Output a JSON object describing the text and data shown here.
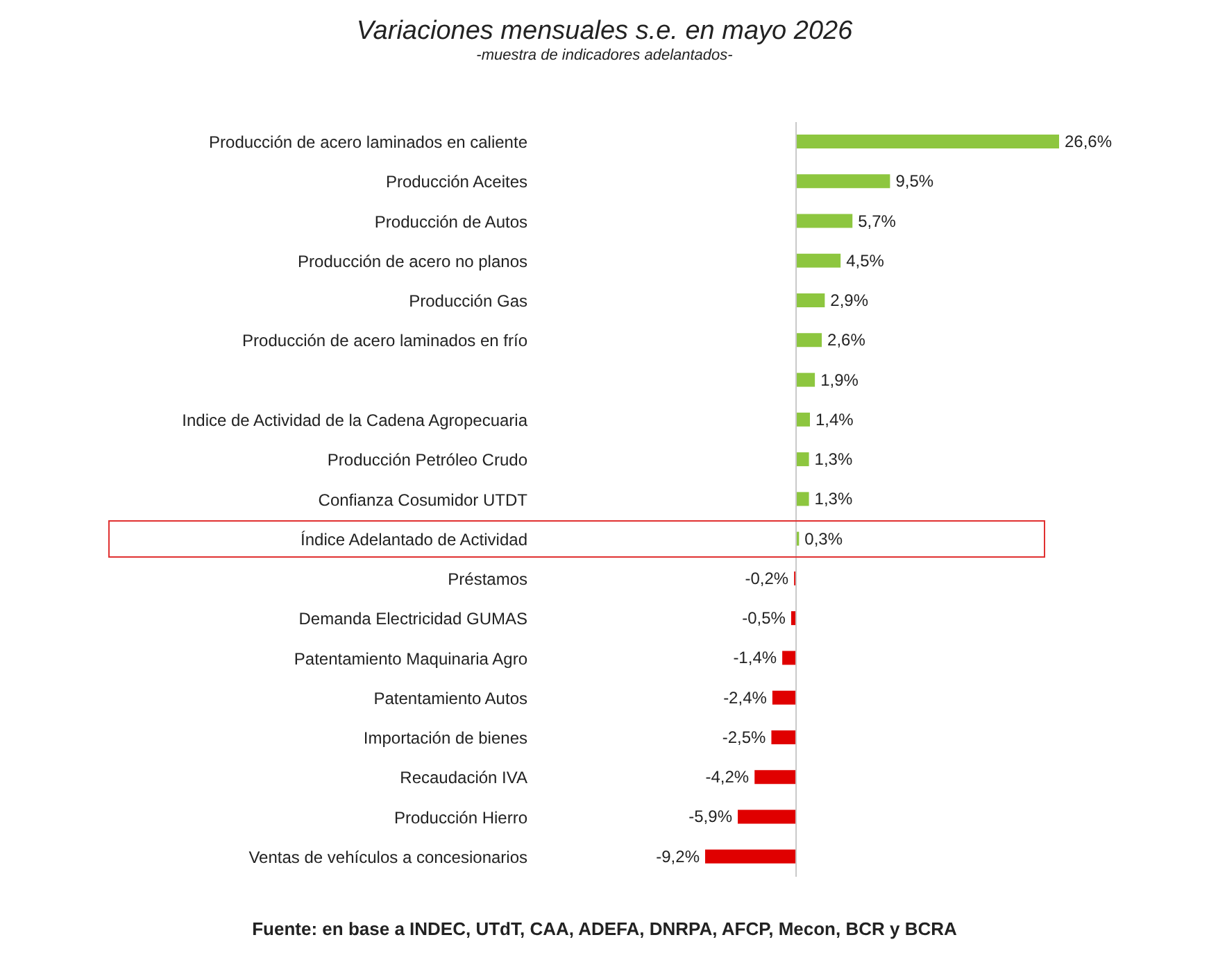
{
  "chart_data": {
    "type": "bar",
    "orientation": "horizontal",
    "title": "Variaciones mensuales s.e. en mayo 2026",
    "subtitle": "-muestra de indicadores adelantados-",
    "categories": [
      "Producción de acero laminados en caliente",
      "Producción Aceites",
      "Producción de Autos",
      "Producción de acero no planos",
      "Producción Gas",
      "Producción de acero laminados en frío",
      null,
      "Indice de Actividad de la Cadena Agropecuaria",
      "Producción Petróleo Crudo",
      "Confianza Cosumidor UTDT",
      "Índice Adelantado de Actividad",
      "Préstamos",
      "Demanda Electricidad GUMAS",
      "Patentamiento Maquinaria Agro",
      "Patentamiento Autos",
      "Importación de bienes",
      "Recaudación IVA",
      "Producción Hierro",
      "Ventas de vehículos a concesionarios"
    ],
    "values": [
      26.6,
      9.5,
      5.7,
      4.5,
      2.9,
      2.6,
      1.9,
      1.4,
      1.3,
      1.3,
      0.3,
      -0.2,
      -0.5,
      -1.4,
      -2.4,
      -2.5,
      -4.2,
      -5.9,
      -9.2
    ],
    "value_labels": [
      "26,6%",
      "9,5%",
      "5,7%",
      "4,5%",
      "2,9%",
      "2,6%",
      "1,9%",
      "1,4%",
      "1,3%",
      "1,3%",
      "0,3%",
      "-0,2%",
      "-0,5%",
      "-1,4%",
      "-2,4%",
      "-2,5%",
      "-4,2%",
      "-5,9%",
      "-9,2%"
    ],
    "colors": [
      "#8dc63f",
      "#8dc63f",
      "#8dc63f",
      "#8dc63f",
      "#8dc63f",
      "#8dc63f",
      "#8dc63f",
      "#8dc63f",
      "#8dc63f",
      "#8dc63f",
      "#8dc63f",
      "#e00000",
      "#e00000",
      "#e00000",
      "#e00000",
      "#e00000",
      "#e00000",
      "#e00000",
      "#e00000"
    ],
    "grid": false,
    "legend": false,
    "annotations": [
      "Fuente: en base a INDEC, UTdT, CAA, ADEFA, DNRPA, AFCP, Mecon, BCR y BCRA"
    ]
  }
}
